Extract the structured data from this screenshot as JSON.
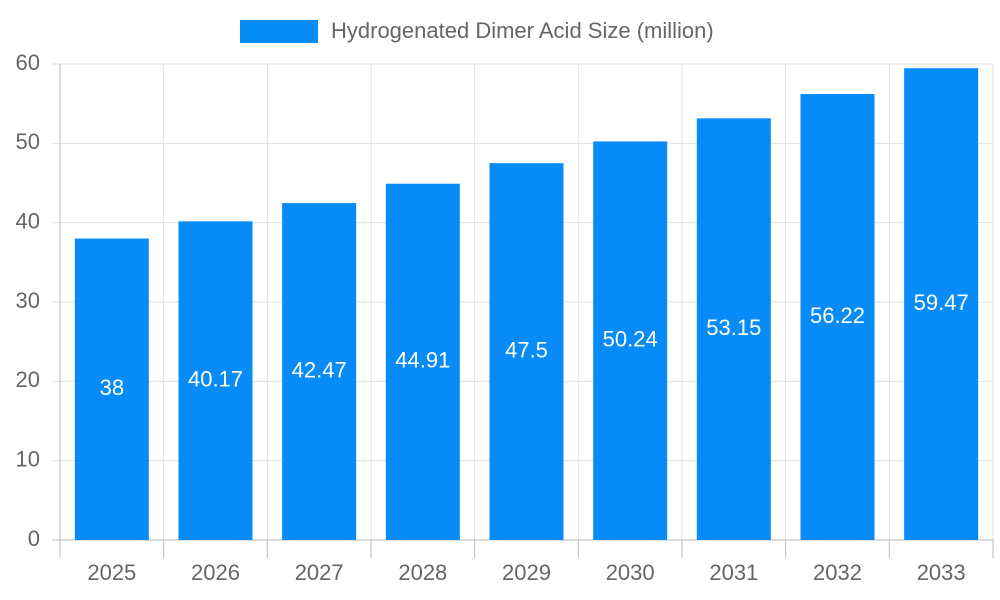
{
  "chart_data": {
    "type": "bar",
    "categories": [
      "2025",
      "2026",
      "2027",
      "2028",
      "2029",
      "2030",
      "2031",
      "2032",
      "2033"
    ],
    "series": [
      {
        "name": "Hydrogenated Dimer Acid Size (million)",
        "color": "#078bf7",
        "values": [
          38,
          40.17,
          42.47,
          44.91,
          47.5,
          50.24,
          53.15,
          56.22,
          59.47
        ]
      }
    ],
    "ylim": [
      0,
      60
    ],
    "yticks": [
      0,
      10,
      20,
      30,
      40,
      50,
      60
    ],
    "grid": true,
    "legend": "top"
  }
}
